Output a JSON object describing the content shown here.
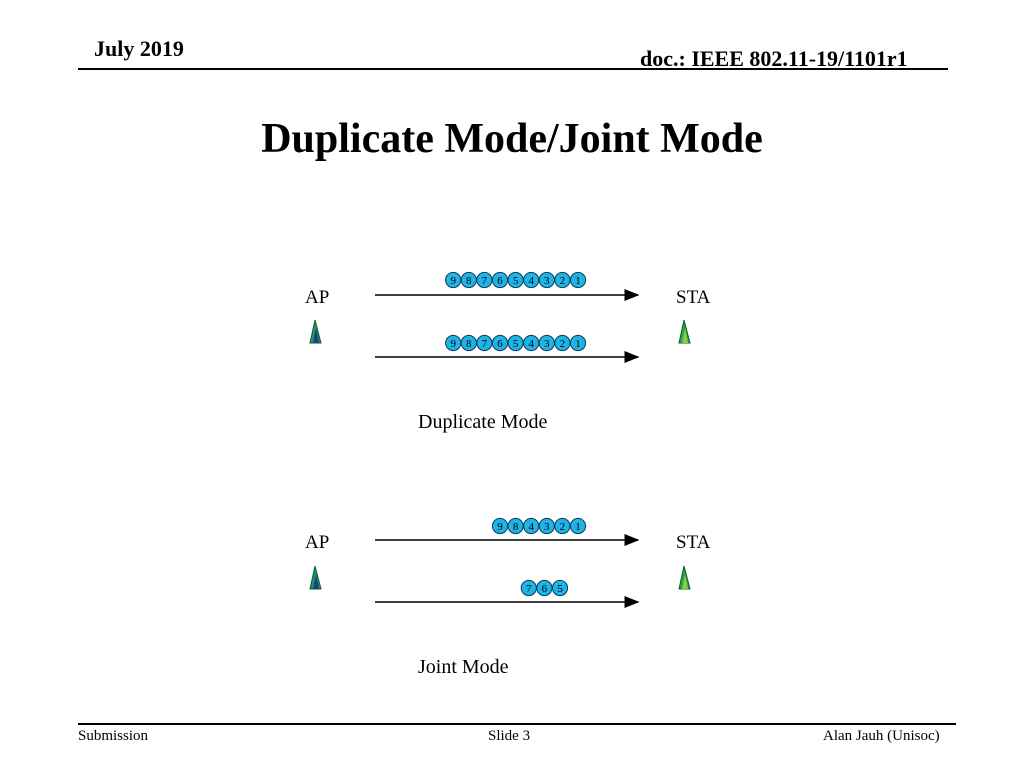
{
  "header": {
    "date": "July 2019",
    "doc": "doc.: IEEE 802.11-19/1101r1"
  },
  "title": "Duplicate Mode/Joint Mode",
  "diagrams": [
    {
      "name": "duplicate",
      "caption": "Duplicate Mode",
      "left_label": "AP",
      "right_label": "STA",
      "links": [
        {
          "packets": [
            "9",
            "8",
            "7",
            "6",
            "5",
            "4",
            "3",
            "2",
            "1"
          ]
        },
        {
          "packets": [
            "9",
            "8",
            "7",
            "6",
            "5",
            "4",
            "3",
            "2",
            "1"
          ]
        }
      ]
    },
    {
      "name": "joint",
      "caption": "Joint Mode",
      "left_label": "AP",
      "right_label": "STA",
      "links": [
        {
          "packets": [
            "9",
            "8",
            "4",
            "3",
            "2",
            "1"
          ]
        },
        {
          "packets": [
            "7",
            "6",
            "5"
          ]
        }
      ]
    }
  ],
  "colors": {
    "packet_fill": "#1fb4e6",
    "ap_icon": "#1a9a5a",
    "ap_icon_inner": "#1f3c8c",
    "sta_icon": "#22a84a",
    "sta_icon_inner": "#8ccc3c"
  },
  "footer": {
    "left": "Submission",
    "center": "Slide 3",
    "right": "Alan Jauh (Unisoc)"
  }
}
